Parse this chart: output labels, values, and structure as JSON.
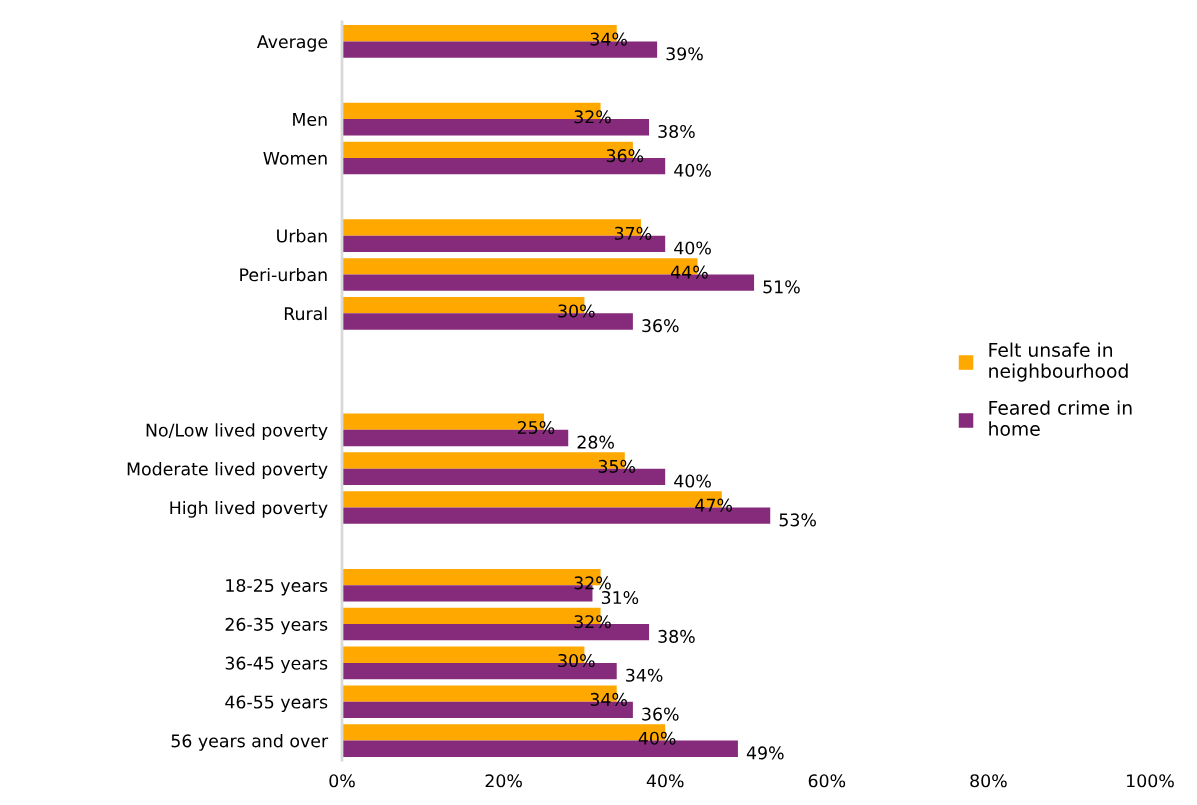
{
  "chart_data": {
    "type": "bar",
    "orientation": "horizontal",
    "categories": [
      "Average",
      null,
      "Men",
      "Women",
      null,
      "Urban",
      "Peri-urban",
      "Rural",
      null,
      null,
      "No/Low lived poverty",
      "Moderate lived poverty",
      "High lived poverty",
      null,
      "18-25 years",
      "26-35 years",
      "36-45 years",
      "46-55 years",
      "56 years and over"
    ],
    "series": [
      {
        "name": "Felt unsafe in\nneighbourhood",
        "color": "#ffa800",
        "values": [
          34,
          null,
          32,
          36,
          null,
          37,
          44,
          30,
          null,
          null,
          25,
          35,
          47,
          null,
          32,
          32,
          30,
          34,
          40
        ],
        "value_labels": [
          "34%",
          null,
          "32%",
          "36%",
          null,
          "37%",
          "44%",
          "30%",
          null,
          null,
          "25%",
          "35%",
          "47%",
          null,
          "32%",
          "32%",
          "30%",
          "34%",
          "40%"
        ]
      },
      {
        "name": "Feared crime in\nhome",
        "color": "#862a7c",
        "values": [
          39,
          null,
          38,
          40,
          null,
          40,
          51,
          36,
          null,
          null,
          28,
          40,
          53,
          null,
          31,
          38,
          34,
          36,
          49
        ],
        "value_labels": [
          "39%",
          null,
          "38%",
          "40%",
          null,
          "40%",
          "51%",
          "36%",
          null,
          null,
          "28%",
          "40%",
          "53%",
          null,
          "31%",
          "38%",
          "34%",
          "36%",
          "49%"
        ]
      }
    ],
    "xlim": [
      0,
      100
    ],
    "xticks": [
      {
        "value": 0,
        "label": "0%"
      },
      {
        "value": 20,
        "label": "20%"
      },
      {
        "value": 40,
        "label": "40%"
      },
      {
        "value": 60,
        "label": "60%"
      },
      {
        "value": 80,
        "label": "80%"
      },
      {
        "value": 100,
        "label": "100%"
      }
    ],
    "grid": false,
    "legend": "right"
  }
}
